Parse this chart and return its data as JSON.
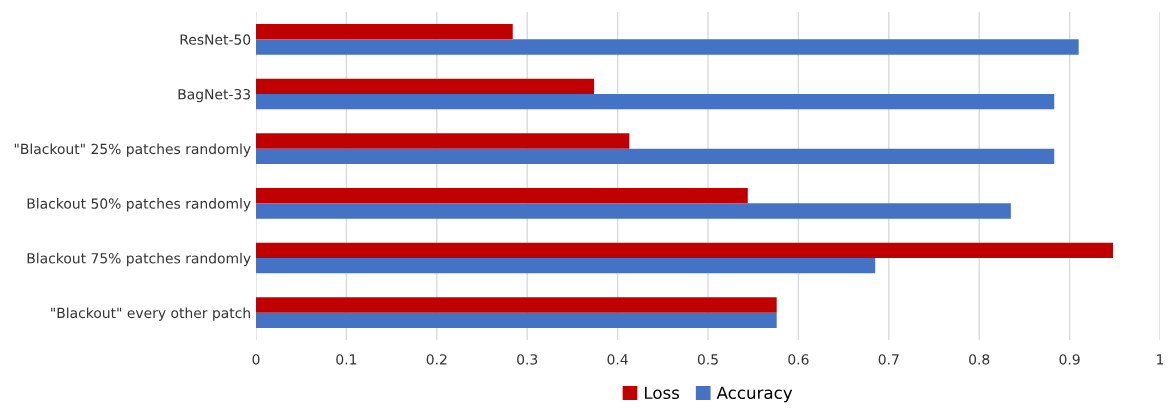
{
  "chart_data": {
    "type": "bar",
    "orientation": "horizontal",
    "categories": [
      "ResNet-50",
      "BagNet-33",
      "\"Blackout\" 25% patches randomly",
      "Blackout 50% patches randomly",
      "Blackout 75% patches randomly",
      "\"Blackout\" every other patch"
    ],
    "series": [
      {
        "name": "Loss",
        "color": "#c00000",
        "values": [
          0.284,
          0.374,
          0.413,
          0.544,
          0.948,
          0.576
        ]
      },
      {
        "name": "Accuracy",
        "color": "#4472c4",
        "values": [
          0.91,
          0.883,
          0.883,
          0.835,
          0.685,
          0.576
        ]
      }
    ],
    "xlim": [
      0,
      1
    ],
    "xticks": [
      0,
      0.1,
      0.2,
      0.3,
      0.4,
      0.5,
      0.6,
      0.7,
      0.8,
      0.9,
      1
    ],
    "grid": "x",
    "legend": "bottom"
  }
}
